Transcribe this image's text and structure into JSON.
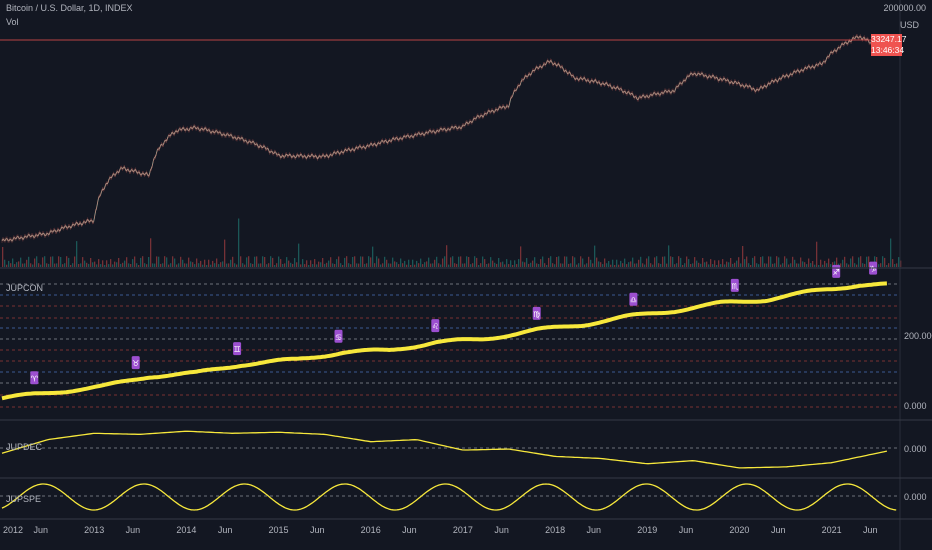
{
  "header": {
    "symbol_title": "Bitcoin / U.S. Dollar, 1D, INDEX",
    "volume_label": "Vol",
    "currency": "USD",
    "top_scale_value": "200000.00",
    "last_price": "33247.17",
    "countdown": "13:46:34"
  },
  "panes": {
    "jupcon": {
      "label": "JUPCON",
      "scale": [
        "200.000",
        "0.000"
      ]
    },
    "jupdec": {
      "label": "JUPDEC",
      "scale": [
        "0.000"
      ]
    },
    "jupspe": {
      "label": "JUPSPE",
      "scale": [
        "0.000"
      ]
    }
  },
  "colors": {
    "background": "#131722",
    "indicator_line": "#f7e83c",
    "marker": "#9c4fd0",
    "price_line": "#ef5350",
    "grid_blue": "#4a6fb8",
    "grid_red": "#9b3a3a",
    "grid_grey": "#8c8f99"
  },
  "chart_data": [
    {
      "type": "line",
      "name": "price",
      "y_scale": "log",
      "x": [
        2012.0,
        2012.5,
        2013.0,
        2013.3,
        2013.6,
        2013.9,
        2014.1,
        2014.5,
        2015.0,
        2015.5,
        2016.0,
        2016.5,
        2017.0,
        2017.5,
        2017.95,
        2018.2,
        2018.5,
        2018.9,
        2019.3,
        2019.5,
        2019.9,
        2020.2,
        2020.5,
        2020.9,
        2021.1,
        2021.3,
        2021.5,
        2021.6
      ],
      "y": [
        5,
        7,
        13,
        140,
        100,
        800,
        900,
        600,
        250,
        240,
        400,
        650,
        950,
        2500,
        19000,
        9000,
        7000,
        3500,
        5000,
        11000,
        7500,
        5000,
        9500,
        17000,
        38000,
        60000,
        35000,
        33247
      ]
    },
    {
      "type": "line",
      "name": "JUPCON",
      "x": [
        2012.0,
        2012.6,
        2013.1,
        2013.6,
        2014.1,
        2014.6,
        2015.2,
        2015.7,
        2016.2,
        2016.7,
        2017.2,
        2017.8,
        2018.3,
        2018.8,
        2019.3,
        2019.8,
        2020.3,
        2020.8,
        2021.3,
        2021.6
      ],
      "y": [
        10,
        28,
        42,
        70,
        78,
        102,
        115,
        135,
        140,
        162,
        170,
        195,
        210,
        232,
        248,
        268,
        278,
        300,
        318,
        318
      ],
      "markers_x": [
        2012.35,
        2013.45,
        2014.55,
        2015.65,
        2016.7,
        2017.8,
        2018.85,
        2019.95,
        2021.05,
        2021.45
      ],
      "markers": [
        "♈",
        "♉",
        "♊",
        "♋",
        "♌",
        "♍",
        "♎",
        "♏",
        "♐",
        "♑"
      ]
    },
    {
      "type": "line",
      "name": "JUPDEC",
      "x": [
        2012.0,
        2012.5,
        2013.0,
        2013.5,
        2014.0,
        2014.5,
        2015.0,
        2015.5,
        2016.0,
        2016.5,
        2017.0,
        2017.5,
        2018.0,
        2018.5,
        2019.0,
        2019.5,
        2020.0,
        2020.5,
        2021.0,
        2021.6
      ],
      "y": [
        -5,
        8,
        14,
        13,
        16,
        14,
        15,
        13,
        6,
        8,
        -2,
        -1,
        -8,
        -10,
        -15,
        -12,
        -19,
        -18,
        -14,
        -3
      ]
    },
    {
      "type": "line",
      "name": "JUPSPE",
      "x_period": 1.09,
      "amplitude": 1,
      "x_range": [
        2012.0,
        2021.7
      ]
    }
  ],
  "x_axis": {
    "ticks": [
      "2012",
      "Jun",
      "2013",
      "Jun",
      "2014",
      "Jun",
      "2015",
      "Jun",
      "2016",
      "Jun",
      "2017",
      "Jun",
      "2018",
      "Jun",
      "2019",
      "Jun",
      "2020",
      "Jun",
      "2021",
      "Jun"
    ]
  }
}
